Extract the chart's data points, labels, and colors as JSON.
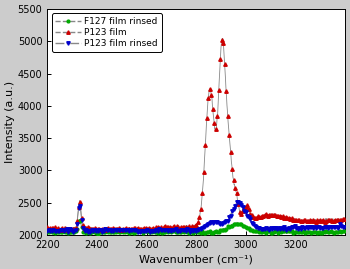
{
  "xlim": [
    2200,
    3400
  ],
  "ylim": [
    2000,
    5500
  ],
  "xlabel": "Wavenumber (cm⁻¹)",
  "ylabel": "Intensity (a.u.)",
  "xticks": [
    2200,
    2400,
    2600,
    2800,
    3000,
    3200
  ],
  "yticks": [
    2000,
    2500,
    3000,
    3500,
    4000,
    4500,
    5000,
    5500
  ],
  "legend": [
    "F127 film rinsed",
    "P123 film",
    "P123 film rinsed"
  ],
  "line_color": "#888888",
  "colors": {
    "F127_rinsed": "#00aa00",
    "P123": "#cc0000",
    "P123_rinsed": "#0000cc"
  },
  "bg_color": "#ffffff",
  "fig_color": "#cccccc"
}
